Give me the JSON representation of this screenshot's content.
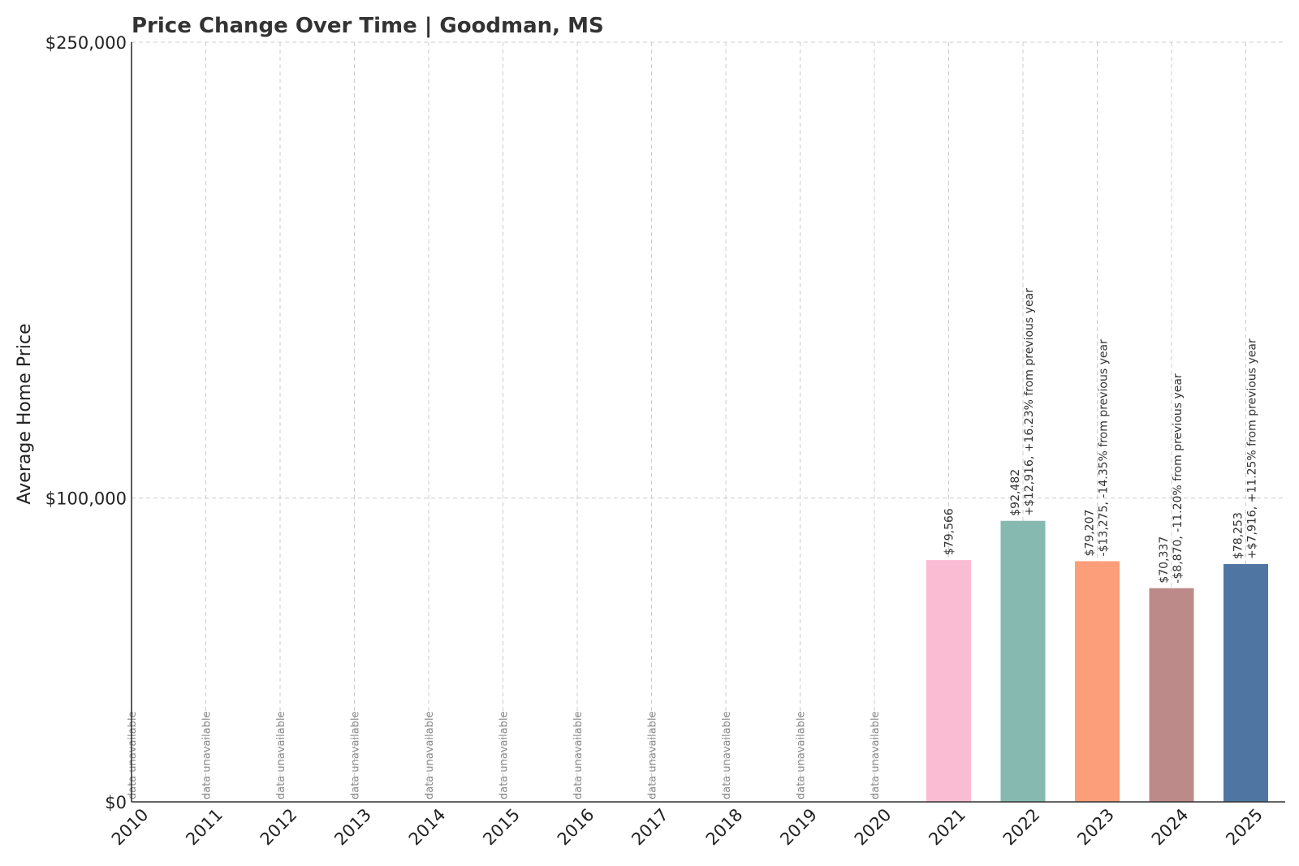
{
  "chart_data": {
    "type": "bar",
    "title": "Price Change Over Time | Goodman, MS",
    "xlabel": "",
    "ylabel": "Average Home Price",
    "ylim": [
      0,
      250000
    ],
    "yticks": [
      {
        "value": 0,
        "label": "$0"
      },
      {
        "value": 100000,
        "label": "$100,000"
      },
      {
        "value": 250000,
        "label": "$250,000"
      }
    ],
    "grid": true,
    "categories": [
      "2010",
      "2011",
      "2012",
      "2013",
      "2014",
      "2015",
      "2016",
      "2017",
      "2018",
      "2019",
      "2020",
      "2021",
      "2022",
      "2023",
      "2024",
      "2025"
    ],
    "values": [
      null,
      null,
      null,
      null,
      null,
      null,
      null,
      null,
      null,
      null,
      null,
      79566,
      92482,
      79207,
      70337,
      78253
    ],
    "colors": [
      "#f9bcd3",
      "#86b9b0",
      "#fc9e79",
      "#bc8a89",
      "#4f76a3"
    ],
    "missing_label": "data unavailable",
    "bar_labels": [
      {
        "year": "2021",
        "value_text": "$79,566",
        "change_text": ""
      },
      {
        "year": "2022",
        "value_text": "$92,482",
        "change_text": "+$12,916, +16.23% from previous year"
      },
      {
        "year": "2023",
        "value_text": "$79,207",
        "change_text": "-$13,275, -14.35% from previous year"
      },
      {
        "year": "2024",
        "value_text": "$70,337",
        "change_text": "-$8,870, -11.20% from previous year"
      },
      {
        "year": "2025",
        "value_text": "$78,253",
        "change_text": "+$7,916, +11.25% from previous year"
      }
    ]
  }
}
